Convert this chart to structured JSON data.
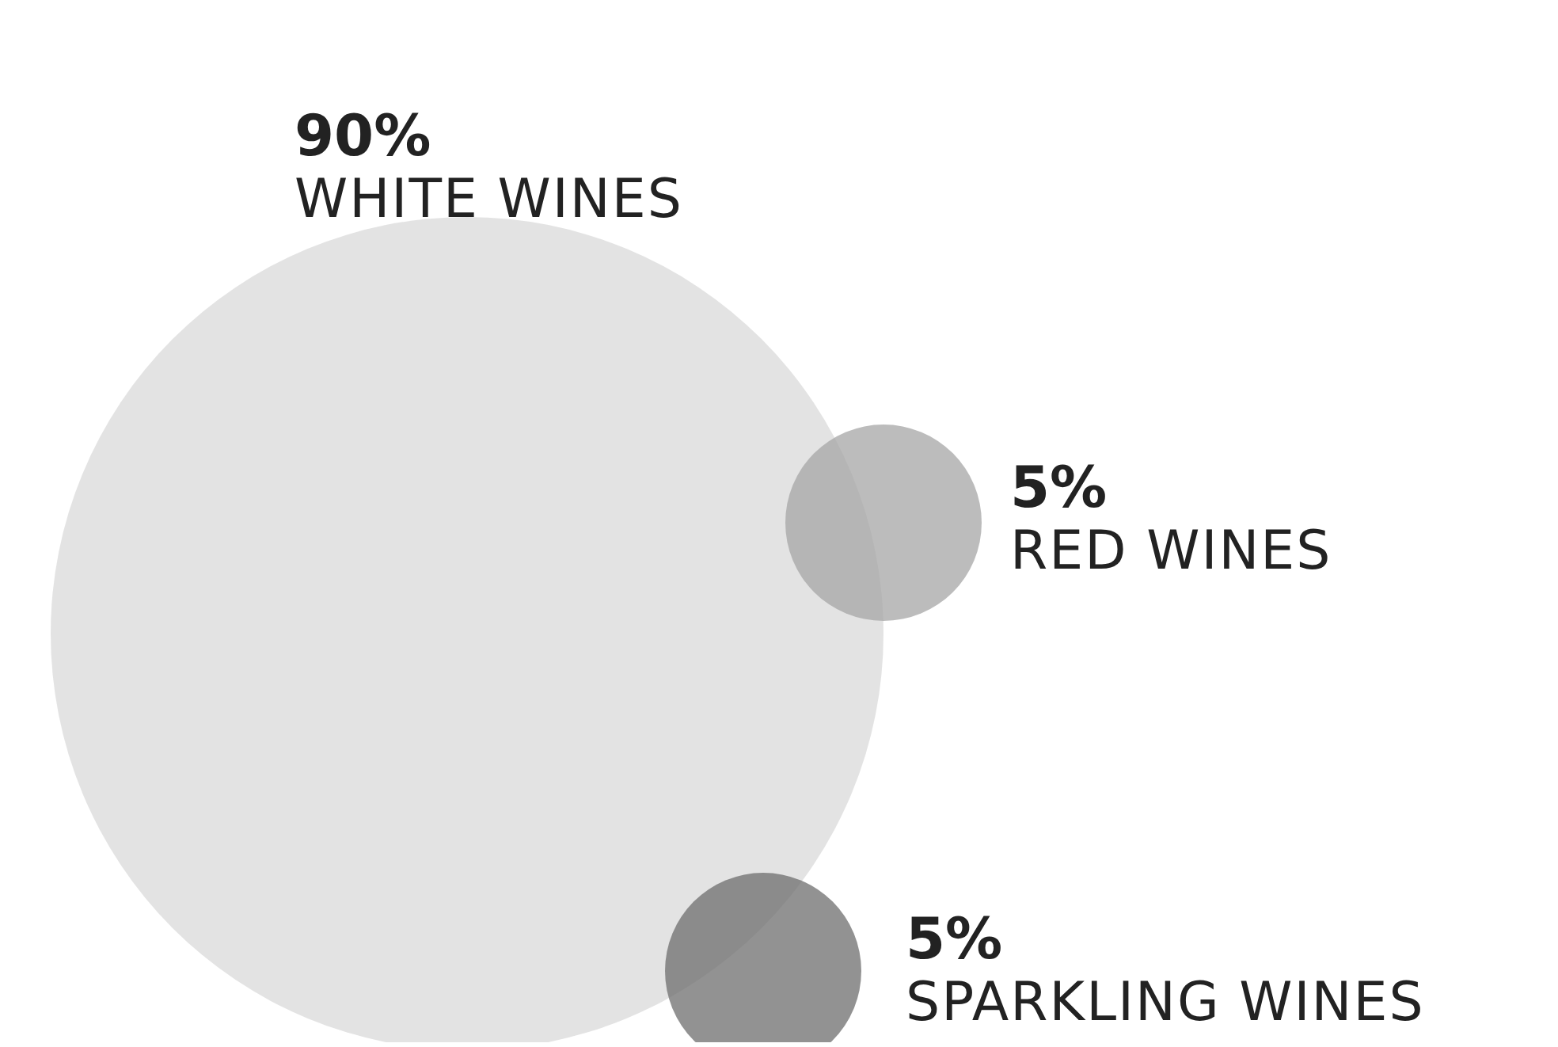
{
  "chart_data": {
    "type": "other",
    "categories": [
      "WHITE WINES",
      "RED WINES",
      "SPARKLING WINES"
    ],
    "values": [
      90,
      5,
      5
    ],
    "value_labels": [
      "90%",
      "5%",
      "5%"
    ],
    "colors": [
      "#d9d9d9",
      "#a6a6a6",
      "#6e6e6e"
    ]
  }
}
